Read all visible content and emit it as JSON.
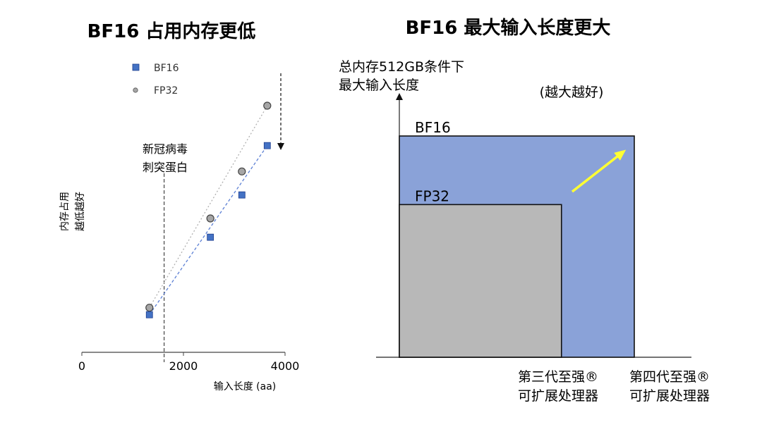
{
  "chart_data": [
    {
      "type": "scatter",
      "title": "BF16 占用内存更低",
      "xlabel": "输入长度 (aa)",
      "ylabel": [
        "内存占用",
        "越低越好"
      ],
      "xlim": [
        0,
        4000
      ],
      "xticks": [
        0,
        2000,
        4000
      ],
      "y_axis_visible": false,
      "grid": false,
      "legend": "top-left",
      "annotation": [
        "新冠病毒",
        "刺突蛋白"
      ],
      "annotation_x": 1620,
      "arrow": "down (lower is better)",
      "series": [
        {
          "name": "BF16",
          "marker": "square",
          "color": "#4472c4",
          "trend": "dashed-blue",
          "x": [
            1330,
            2530,
            3150,
            3650
          ],
          "y": [
            8,
            24.5,
            33.5,
            44
          ]
        },
        {
          "name": "FP32",
          "marker": "circle",
          "color": "#a6a6a6",
          "trend": "dotted-gray",
          "x": [
            1330,
            2530,
            3150,
            3650
          ],
          "y": [
            9.5,
            28.5,
            38.5,
            52.5
          ]
        }
      ]
    },
    {
      "type": "area",
      "title": "BF16 最大输入长度更大",
      "ylabel": [
        "总内存512GB条件下",
        "最大输入长度"
      ],
      "annotation": "(越大越好)",
      "categories": [
        "第三代至强®\n可扩展处理器",
        "第四代至强®\n可扩展处理器"
      ],
      "category_lines": [
        [
          "第三代至强®",
          "可扩展处理器"
        ],
        [
          "第四代至强®",
          "可扩展处理器"
        ]
      ],
      "series": [
        {
          "name": "BF16",
          "color": "#8aa2d8",
          "width_fraction": 1.0,
          "height_fraction": 1.0
        },
        {
          "name": "FP32",
          "color": "#b8b8b8",
          "width_fraction": 0.69,
          "height_fraction": 0.69
        }
      ],
      "arrow_color": "#ffff33"
    }
  ]
}
